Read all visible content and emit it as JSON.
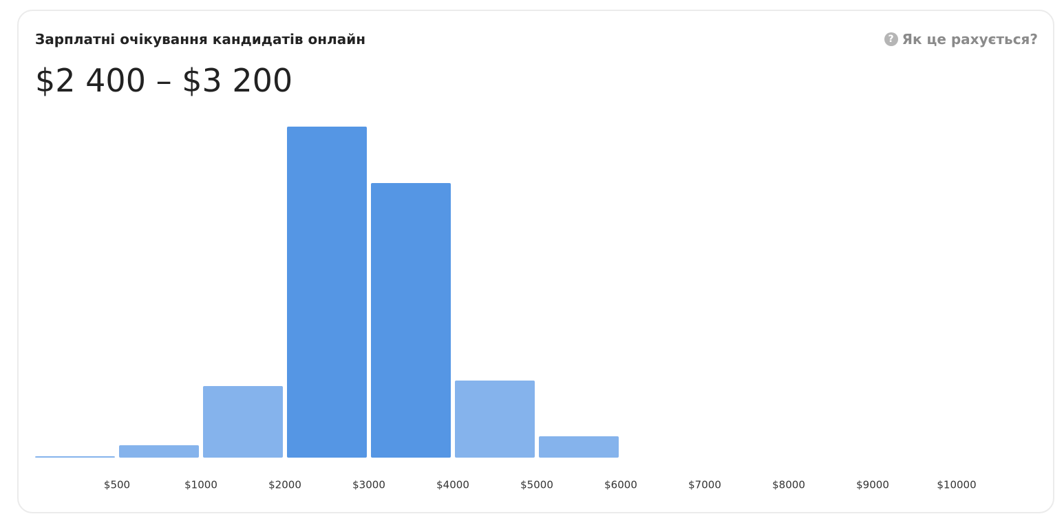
{
  "header": {
    "title": "Зарплатні очікування кандидатів онлайн",
    "range": "$2 400 – $3 200",
    "help": "Як це рахується?"
  },
  "chart_data": {
    "type": "bar",
    "boundaries": [
      "$500",
      "$1000",
      "$2000",
      "$3000",
      "$4000",
      "$5000",
      "$6000",
      "$7000",
      "$8000",
      "$9000",
      "$10000"
    ],
    "values": [
      2,
      18,
      104,
      481,
      399,
      112,
      31,
      0,
      0,
      0,
      0,
      0
    ],
    "colors": [
      "#85b3ec",
      "#85b3ec",
      "#85b3ec",
      "#5596e4",
      "#5596e4",
      "#85b3ec",
      "#85b3ec",
      "#85b3ec",
      "#85b3ec",
      "#85b3ec",
      "#85b3ec",
      "#85b3ec"
    ],
    "ylim": [
      0,
      500
    ]
  }
}
